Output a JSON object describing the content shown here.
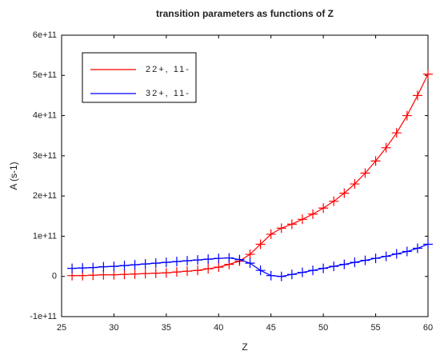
{
  "chart_data": {
    "type": "line",
    "title": "transition parameters as functions of Z",
    "xlabel": "Z",
    "ylabel": "A (s-1)",
    "x": [
      26,
      27,
      28,
      29,
      30,
      31,
      32,
      33,
      34,
      35,
      36,
      37,
      38,
      39,
      40,
      41,
      42,
      43,
      44,
      45,
      46,
      47,
      48,
      49,
      50,
      51,
      52,
      53,
      54,
      55,
      56,
      57,
      58,
      59,
      60
    ],
    "series": [
      {
        "name": "22+, 11-",
        "color": "#ff0000",
        "values": [
          2000000000.0,
          2000000000.0,
          3000000000.0,
          4000000000.0,
          4000000000.0,
          5000000000.0,
          6000000000.0,
          7000000000.0,
          8000000000.0,
          9000000000.0,
          11000000000.0,
          13000000000.0,
          15000000000.0,
          19000000000.0,
          23000000000.0,
          30000000000.0,
          38000000000.0,
          55000000000.0,
          80000000000.0,
          105000000000.0,
          120000000000.0,
          130000000000.0,
          142000000000.0,
          155000000000.0,
          170000000000.0,
          187000000000.0,
          207000000000.0,
          230000000000.0,
          257000000000.0,
          287000000000.0,
          320000000000.0,
          357000000000.0,
          400000000000.0,
          450000000000.0,
          503000000000.0
        ]
      },
      {
        "name": "32+, 11-",
        "color": "#0000ff",
        "values": [
          20000000000.0,
          21000000000.0,
          22000000000.0,
          24000000000.0,
          25000000000.0,
          27000000000.0,
          29000000000.0,
          31000000000.0,
          33000000000.0,
          35000000000.0,
          37000000000.0,
          39000000000.0,
          41000000000.0,
          43000000000.0,
          45000000000.0,
          46000000000.0,
          42000000000.0,
          33000000000.0,
          15000000000.0,
          2000000000.0,
          0,
          5000000000.0,
          10000000000.0,
          15000000000.0,
          20000000000.0,
          25000000000.0,
          30000000000.0,
          35000000000.0,
          40000000000.0,
          45000000000.0,
          50000000000.0,
          56000000000.0,
          62000000000.0,
          70000000000.0,
          80000000000.0
        ]
      }
    ],
    "xlim": [
      25,
      60
    ],
    "xticks": [
      25,
      30,
      35,
      40,
      45,
      50,
      55,
      60
    ],
    "ylim": [
      -100000000000,
      600000000000
    ],
    "yticks": [
      {
        "value": -100000000000,
        "label": "-1e+11"
      },
      0,
      {
        "value": 100000000000,
        "label": "1e+11"
      },
      {
        "value": 200000000000,
        "label": "2e+11"
      },
      {
        "value": 300000000000,
        "label": "3e+11"
      },
      {
        "value": 400000000000,
        "label": "4e+11"
      },
      {
        "value": 500000000000,
        "label": "5e+11"
      },
      {
        "value": 600000000000,
        "label": "6e+11"
      }
    ],
    "marker": "+",
    "legend": "upper left"
  }
}
